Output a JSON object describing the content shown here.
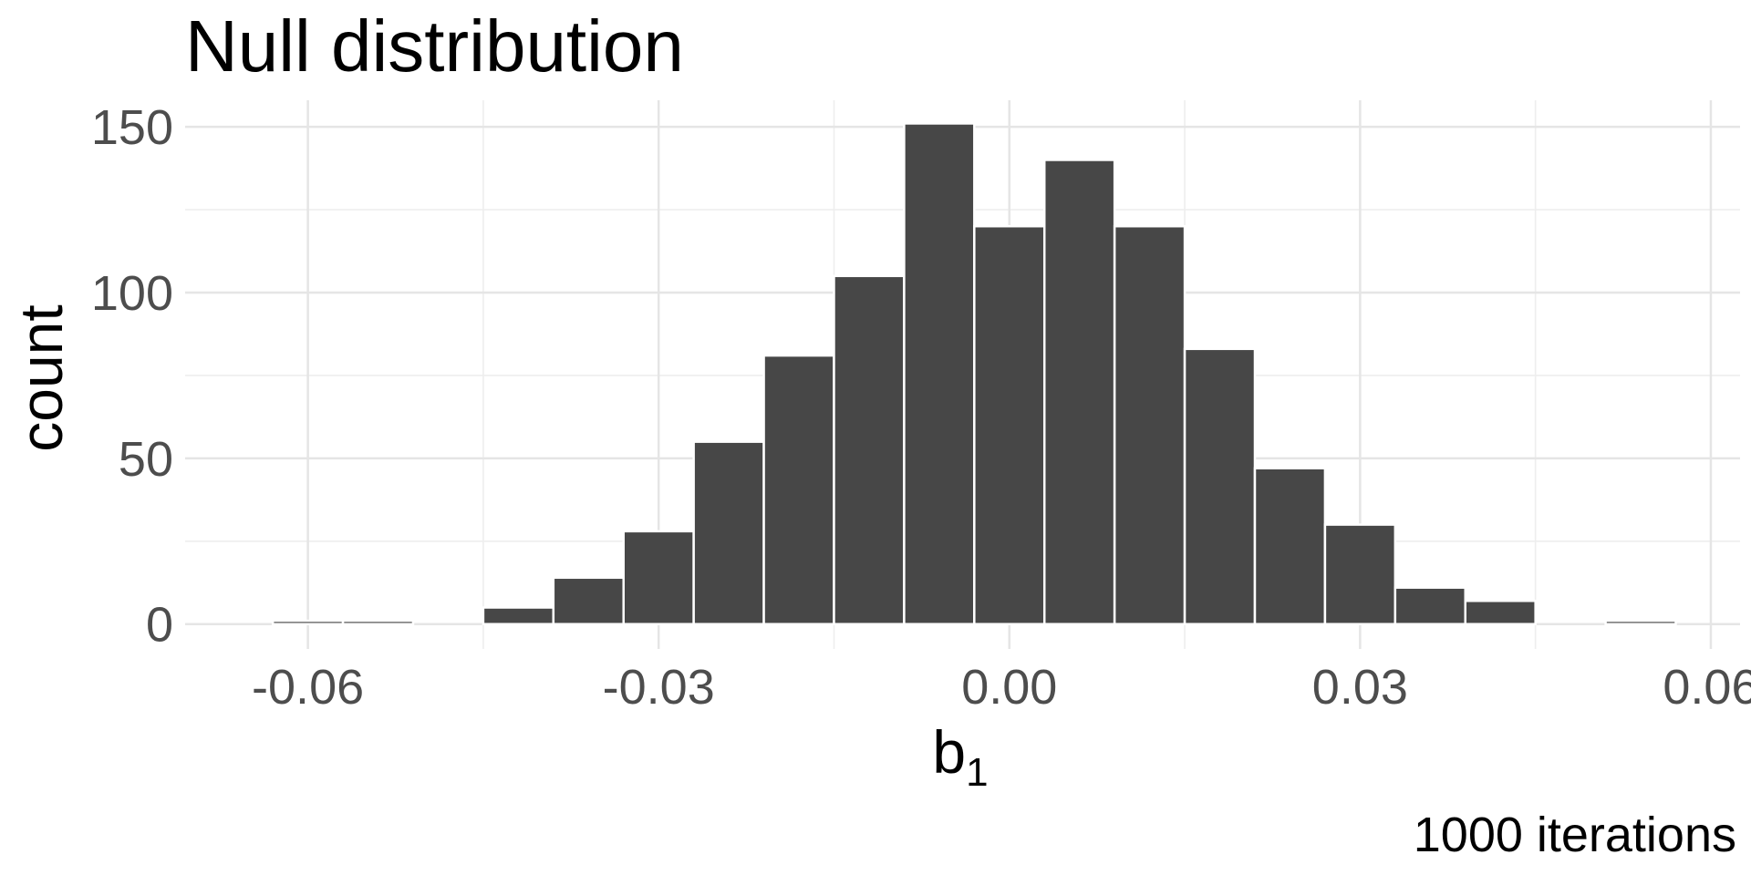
{
  "chart_data": {
    "type": "bar",
    "title": "Null distribution",
    "xlabel": "b",
    "xlabel_subscript": "1",
    "ylabel": "count",
    "caption": "1000 iterations",
    "xlim": [
      -0.0705,
      0.0625
    ],
    "ylim": [
      -7.5,
      158
    ],
    "x_ticks": [
      -0.06,
      -0.03,
      0.0,
      0.03,
      0.06
    ],
    "x_tick_labels": [
      "-0.06",
      "-0.03",
      "0.00",
      "0.03",
      "0.06"
    ],
    "y_ticks": [
      0,
      50,
      100,
      150
    ],
    "y_tick_labels": [
      "0",
      "50",
      "100",
      "150"
    ],
    "grid": true,
    "bin_width": 0.006,
    "bins": [
      {
        "x": -0.06,
        "count": 1
      },
      {
        "x": -0.054,
        "count": 1
      },
      {
        "x": -0.042,
        "count": 5
      },
      {
        "x": -0.036,
        "count": 14
      },
      {
        "x": -0.03,
        "count": 28
      },
      {
        "x": -0.024,
        "count": 55
      },
      {
        "x": -0.018,
        "count": 81
      },
      {
        "x": -0.012,
        "count": 105
      },
      {
        "x": -0.006,
        "count": 151
      },
      {
        "x": 0.0,
        "count": 120
      },
      {
        "x": 0.006,
        "count": 140
      },
      {
        "x": 0.012,
        "count": 120
      },
      {
        "x": 0.018,
        "count": 83
      },
      {
        "x": 0.024,
        "count": 47
      },
      {
        "x": 0.03,
        "count": 30
      },
      {
        "x": 0.036,
        "count": 11
      },
      {
        "x": 0.042,
        "count": 7
      },
      {
        "x": 0.054,
        "count": 1
      }
    ]
  }
}
